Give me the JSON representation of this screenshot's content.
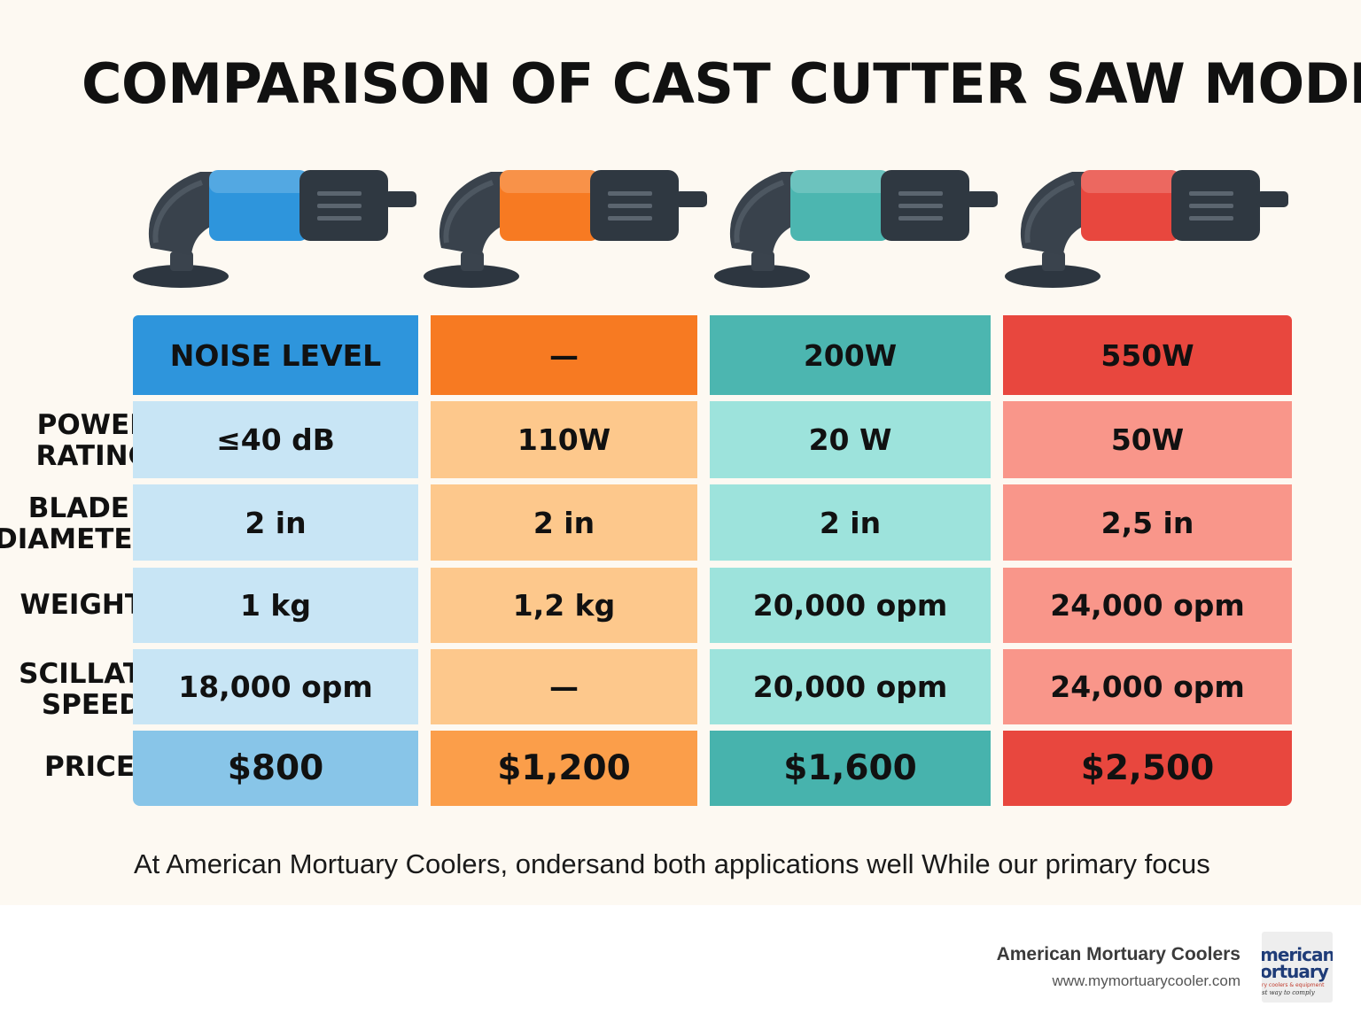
{
  "title": "COMPARISON OF CAST CUTTER SAW MODELS",
  "colors": {
    "background": "#fdf9f2",
    "models": [
      {
        "name": "blue",
        "header": "#2e95dc",
        "cell": "#c8e5f5",
        "price": "#88c5e8"
      },
      {
        "name": "orange",
        "header": "#f77a22",
        "cell": "#fdc88c",
        "price": "#fb9e4a"
      },
      {
        "name": "teal",
        "header": "#4cb6b0",
        "cell": "#9de3dc",
        "price": "#47b3ad"
      },
      {
        "name": "red",
        "header": "#e8473e",
        "cell": "#f9968a",
        "price": "#e8473e"
      }
    ]
  },
  "icons": [
    "cast-saw-blue-icon",
    "cast-saw-orange-icon",
    "cast-saw-teal-icon",
    "cast-saw-red-icon"
  ],
  "table": {
    "header_row": [
      "NOISE LEVEL",
      "—",
      "200W",
      "550W"
    ],
    "row_labels": [
      {
        "line1": "POWER",
        "line2": "RATING"
      },
      {
        "line1": "BLADE",
        "line2": "DIAMETER"
      },
      {
        "line1": "WEIGHT",
        "line2": ""
      },
      {
        "line1": "SCILLAT",
        "line2": "SPEED"
      },
      {
        "line1": "PRICE",
        "line2": ""
      }
    ],
    "rows": [
      [
        "≤40 dB",
        "110W",
        "20 W",
        "50W"
      ],
      [
        "2 in",
        "2 in",
        "2 in",
        "2,5 in"
      ],
      [
        "1 kg",
        "1,2 kg",
        "20,000 opm",
        "24,000 opm"
      ],
      [
        "18,000 opm",
        "—",
        "20,000 opm",
        "24,000 opm"
      ],
      [
        "$800",
        "$1,200",
        "$1,600",
        "$2,500"
      ]
    ]
  },
  "caption": "At American Mortuary Coolers, ondersand both applications well  While our primary focus",
  "footer": {
    "brand_name": "American Mortuary Coolers",
    "url": "www.mymortuarycooler.com",
    "logo_line1": "merican",
    "logo_line2": "ortuary",
    "logo_line3": "ry coolers & equipment",
    "logo_line4": "st way to comply"
  }
}
